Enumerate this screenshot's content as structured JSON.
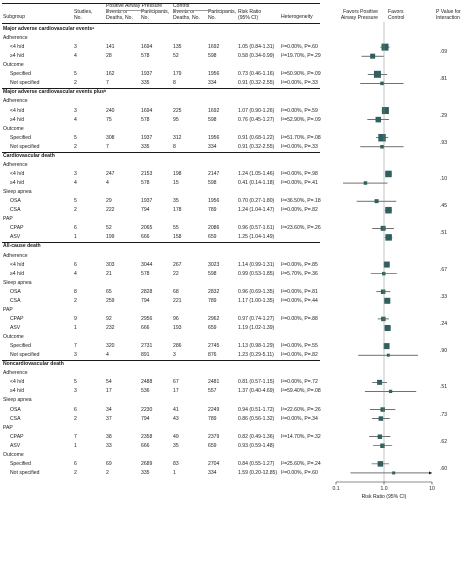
{
  "headers": {
    "subgroup": "Subgroup",
    "studies": "Studies,\nNo.",
    "pap_group": "Positive Airway Pressure",
    "control_group": "Control",
    "events": "Events or\nDeaths, No.",
    "participants": "Participants,\nNo.",
    "risk_ratio": "Risk Ratio\n(95% CI)",
    "heterogeneity": "Heterogeneity",
    "favors_pap": "Favors Positive\nAirway Pressure",
    "favors_control": "Favors\nControl",
    "p_interaction": "P Value for\nInteraction"
  },
  "axis": {
    "title": "Risk Ratio (95% CI)",
    "ticks": [
      "0.1",
      "1.0",
      "10"
    ],
    "scale": "log",
    "range": [
      0.1,
      10
    ]
  },
  "rows": [
    {
      "kind": "section",
      "label": "Major adverse cardiovascular eventsᵃ"
    },
    {
      "kind": "group",
      "label": "Adherence"
    },
    {
      "kind": "data",
      "label": "<4 h/d",
      "studies": "3",
      "pe": "141",
      "pn": "1694",
      "ce": "135",
      "cn": "1692",
      "rr": "1.05 (0.84-1.31)",
      "het": "I²=0.00%, P=.60",
      "est": 1.05,
      "lo": 0.84,
      "hi": 1.31,
      "w": 1.0
    },
    {
      "kind": "data",
      "label": "≥4 h/d",
      "studies": "4",
      "pe": "28",
      "pn": "578",
      "ce": "52",
      "cn": "598",
      "rr": "0.58 (0.34-0.99)",
      "het": "I²=19.70%, P=.29",
      "est": 0.58,
      "lo": 0.34,
      "hi": 0.99,
      "w": 0.6,
      "pval": ".09"
    },
    {
      "kind": "group",
      "label": "Outcome"
    },
    {
      "kind": "data",
      "label": "Specified",
      "studies": "5",
      "pe": "162",
      "pn": "1937",
      "ce": "179",
      "cn": "1956",
      "rr": "0.73 (0.46-1.16)",
      "het": "I²=50.90%, P=.09",
      "est": 0.73,
      "lo": 0.46,
      "hi": 1.16,
      "w": 1.0
    },
    {
      "kind": "data",
      "label": "Not specified",
      "studies": "2",
      "pe": "7",
      "pn": "335",
      "ce": "8",
      "cn": "334",
      "rr": "0.91 (0.32-2.55)",
      "het": "I²=0.00%, P=.33",
      "est": 0.91,
      "lo": 0.32,
      "hi": 2.55,
      "w": 0.3,
      "pval": ".81"
    },
    {
      "kind": "section",
      "label": "Major adverse cardiovascular events plusᵇ"
    },
    {
      "kind": "group",
      "label": "Adherence"
    },
    {
      "kind": "data",
      "label": "<4 h/d",
      "studies": "3",
      "pe": "240",
      "pn": "1694",
      "ce": "225",
      "cn": "1692",
      "rr": "1.07 (0.90-1.26)",
      "het": "I²=0.00%, P=.59",
      "est": 1.07,
      "lo": 0.9,
      "hi": 1.26,
      "w": 1.0
    },
    {
      "kind": "data",
      "label": "≥4 h/d",
      "studies": "4",
      "pe": "75",
      "pn": "578",
      "ce": "95",
      "cn": "598",
      "rr": "0.76 (0.45-1.27)",
      "het": "I²=52.90%, P=.09",
      "est": 0.76,
      "lo": 0.45,
      "hi": 1.27,
      "w": 0.7,
      "pval": ".29"
    },
    {
      "kind": "group",
      "label": "Outcome"
    },
    {
      "kind": "data",
      "label": "Specified",
      "studies": "5",
      "pe": "308",
      "pn": "1937",
      "ce": "312",
      "cn": "1956",
      "rr": "0.91 (0.68-1.22)",
      "het": "I²=51.70%, P=.08",
      "est": 0.91,
      "lo": 0.68,
      "hi": 1.22,
      "w": 1.1
    },
    {
      "kind": "data",
      "label": "Not specified",
      "studies": "2",
      "pe": "7",
      "pn": "335",
      "ce": "8",
      "cn": "334",
      "rr": "0.91 (0.32-2.55)",
      "het": "I²=0.00%, P=.33",
      "est": 0.91,
      "lo": 0.32,
      "hi": 2.55,
      "w": 0.3,
      "pval": ".93"
    },
    {
      "kind": "section",
      "label": "Cardiovascular death"
    },
    {
      "kind": "group",
      "label": "Adherence"
    },
    {
      "kind": "data",
      "label": "<4 h/d",
      "studies": "3",
      "pe": "247",
      "pn": "2153",
      "ce": "198",
      "cn": "2147",
      "rr": "1.24 (1.05-1.46)",
      "het": "I²=0.00%, P=.98",
      "est": 1.24,
      "lo": 1.05,
      "hi": 1.46,
      "w": 0.9
    },
    {
      "kind": "data",
      "label": "≥4 h/d",
      "studies": "4",
      "pe": "4",
      "pn": "578",
      "ce": "15",
      "cn": "598",
      "rr": "0.41 (0.14-1.18)",
      "het": "I²=0.00%, P=.41",
      "est": 0.41,
      "lo": 0.14,
      "hi": 1.18,
      "w": 0.3,
      "pval": ".10"
    },
    {
      "kind": "group",
      "label": "Sleep apnea"
    },
    {
      "kind": "data",
      "label": "OSA",
      "studies": "5",
      "pe": "29",
      "pn": "1937",
      "ce": "35",
      "cn": "1956",
      "rr": "0.70 (0.27-1.80)",
      "het": "I²=36.50%, P=.18",
      "est": 0.7,
      "lo": 0.27,
      "hi": 1.8,
      "w": 0.4
    },
    {
      "kind": "data",
      "label": "CSA",
      "studies": "2",
      "pe": "222",
      "pn": "794",
      "ce": "178",
      "cn": "789",
      "rr": "1.24 (1.04-1.47)",
      "het": "I²=0.00%, P=.82",
      "est": 1.24,
      "lo": 1.04,
      "hi": 1.47,
      "w": 0.9,
      "pval": ".45"
    },
    {
      "kind": "group",
      "label": "PAP"
    },
    {
      "kind": "data",
      "label": "CPAP",
      "studies": "6",
      "pe": "52",
      "pn": "2065",
      "ce": "55",
      "cn": "2086",
      "rr": "0.96 (0.57-1.61)",
      "het": "I²=23.60%, P=.26",
      "est": 0.96,
      "lo": 0.57,
      "hi": 1.61,
      "w": 0.6
    },
    {
      "kind": "data",
      "label": "ASV",
      "studies": "1",
      "pe": "199",
      "pn": "666",
      "ce": "158",
      "cn": "659",
      "rr": "1.25 (1.04-1.49)",
      "het": "",
      "est": 1.25,
      "lo": 1.04,
      "hi": 1.49,
      "w": 0.9,
      "pval": ".51"
    },
    {
      "kind": "section",
      "label": "All-cause death"
    },
    {
      "kind": "group",
      "label": "Adherence"
    },
    {
      "kind": "data",
      "label": "<4 h/d",
      "studies": "6",
      "pe": "303",
      "pn": "3044",
      "ce": "267",
      "cn": "3023",
      "rr": "1.14 (0.99-1.31)",
      "het": "I²=0.00%, P=.85",
      "est": 1.14,
      "lo": 0.99,
      "hi": 1.31,
      "w": 0.8
    },
    {
      "kind": "data",
      "label": "≥4 h/d",
      "studies": "4",
      "pe": "21",
      "pn": "578",
      "ce": "22",
      "cn": "598",
      "rr": "0.99 (0.53-1.85)",
      "het": "I²=5.70%, P=.36",
      "est": 0.99,
      "lo": 0.53,
      "hi": 1.85,
      "w": 0.3,
      "pval": ".67"
    },
    {
      "kind": "group",
      "label": "Sleep apnea"
    },
    {
      "kind": "data",
      "label": "OSA",
      "studies": "8",
      "pe": "65",
      "pn": "2828",
      "ce": "68",
      "cn": "2832",
      "rr": "0.96 (0.69-1.35)",
      "het": "I²=0.00%, P=.81",
      "est": 0.96,
      "lo": 0.69,
      "hi": 1.35,
      "w": 0.5
    },
    {
      "kind": "data",
      "label": "CSA",
      "studies": "2",
      "pe": "259",
      "pn": "794",
      "ce": "221",
      "cn": "789",
      "rr": "1.17 (1.00-1.35)",
      "het": "I²=0.00%, P=.44",
      "est": 1.17,
      "lo": 1.0,
      "hi": 1.35,
      "w": 0.8,
      "pval": ".33"
    },
    {
      "kind": "group",
      "label": "PAP"
    },
    {
      "kind": "data",
      "label": "CPAP",
      "studies": "9",
      "pe": "92",
      "pn": "2956",
      "ce": "96",
      "cn": "2962",
      "rr": "0.97 (0.74-1.27)",
      "het": "I²=0.00%, P=.88",
      "est": 0.97,
      "lo": 0.74,
      "hi": 1.27,
      "w": 0.5
    },
    {
      "kind": "data",
      "label": "ASV",
      "studies": "1",
      "pe": "232",
      "pn": "666",
      "ce": "193",
      "cn": "659",
      "rr": "1.19 (1.02-1.39)",
      "het": "",
      "est": 1.19,
      "lo": 1.02,
      "hi": 1.39,
      "w": 0.8,
      "pval": ".24"
    },
    {
      "kind": "group",
      "label": "Outcome"
    },
    {
      "kind": "data",
      "label": "Specified",
      "studies": "7",
      "pe": "320",
      "pn": "2731",
      "ce": "286",
      "cn": "2745",
      "rr": "1.13 (0.98-1.29)",
      "het": "I²=0.00%, P=.55",
      "est": 1.13,
      "lo": 0.98,
      "hi": 1.29,
      "w": 0.8
    },
    {
      "kind": "data",
      "label": "Not specified",
      "studies": "3",
      "pe": "4",
      "pn": "891",
      "ce": "3",
      "cn": "876",
      "rr": "1.23 (0.29-5.11)",
      "het": "I²=0.00%, P=.82",
      "est": 1.23,
      "lo": 0.29,
      "hi": 5.11,
      "w": 0.2,
      "pval": ".90"
    },
    {
      "kind": "section",
      "label": "Noncardiovascular death"
    },
    {
      "kind": "group",
      "label": "Adherence"
    },
    {
      "kind": "data",
      "label": "<4 h/d",
      "studies": "5",
      "pe": "54",
      "pn": "2488",
      "ce": "67",
      "cn": "2481",
      "rr": "0.81 (0.57-1.15)",
      "het": "I²=0.00%, P=.72",
      "est": 0.81,
      "lo": 0.57,
      "hi": 1.15,
      "w": 0.6
    },
    {
      "kind": "data",
      "label": "≥4 h/d",
      "studies": "3",
      "pe": "17",
      "pn": "536",
      "ce": "17",
      "cn": "557",
      "rr": "1.37 (0.40-4.69)",
      "het": "I²=59.40%, P=.08",
      "est": 1.37,
      "lo": 0.4,
      "hi": 4.69,
      "w": 0.25,
      "pval": ".51"
    },
    {
      "kind": "group",
      "label": "Sleep apnea"
    },
    {
      "kind": "data",
      "label": "OSA",
      "studies": "6",
      "pe": "34",
      "pn": "2230",
      "ce": "41",
      "cn": "2249",
      "rr": "0.94 (0.51-1.72)",
      "het": "I²=22.60%, P=.26",
      "est": 0.94,
      "lo": 0.51,
      "hi": 1.72,
      "w": 0.5
    },
    {
      "kind": "data",
      "label": "CSA",
      "studies": "2",
      "pe": "37",
      "pn": "794",
      "ce": "43",
      "cn": "789",
      "rr": "0.86 (0.56-1.32)",
      "het": "I²=0.00%, P=.34",
      "est": 0.86,
      "lo": 0.56,
      "hi": 1.32,
      "w": 0.5,
      "pval": ".73"
    },
    {
      "kind": "group",
      "label": "PAP"
    },
    {
      "kind": "data",
      "label": "CPAP",
      "studies": "7",
      "pe": "38",
      "pn": "2358",
      "ce": "49",
      "cn": "2379",
      "rr": "0.82 (0.49-1.36)",
      "het": "I²=14.70%, P=.32",
      "est": 0.82,
      "lo": 0.49,
      "hi": 1.36,
      "w": 0.5
    },
    {
      "kind": "data",
      "label": "ASV",
      "studies": "1",
      "pe": "33",
      "pn": "666",
      "ce": "35",
      "cn": "659",
      "rr": "0.93 (0.59-1.48)",
      "het": "",
      "est": 0.93,
      "lo": 0.59,
      "hi": 1.48,
      "w": 0.5,
      "pval": ".62"
    },
    {
      "kind": "group",
      "label": "Outcome"
    },
    {
      "kind": "data",
      "label": "Specified",
      "studies": "6",
      "pe": "69",
      "pn": "2689",
      "ce": "83",
      "cn": "2704",
      "rr": "0.84 (0.55-1.27)",
      "het": "I²=25.60%, P=.24",
      "est": 0.84,
      "lo": 0.55,
      "hi": 1.27,
      "w": 0.7
    },
    {
      "kind": "data",
      "label": "Not specified",
      "studies": "2",
      "pe": "2",
      "pn": "335",
      "ce": "1",
      "cn": "334",
      "rr": "1.59 (0.20-12.85)",
      "het": "I²=0.00%, P=.60",
      "est": 1.59,
      "lo": 0.2,
      "hi": 12.85,
      "w": 0.2,
      "pval": ".60",
      "arrow": true
    }
  ],
  "colors": {
    "marker": "#2f5f5f",
    "line": "#1a1a1a",
    "ref": "#888888"
  }
}
